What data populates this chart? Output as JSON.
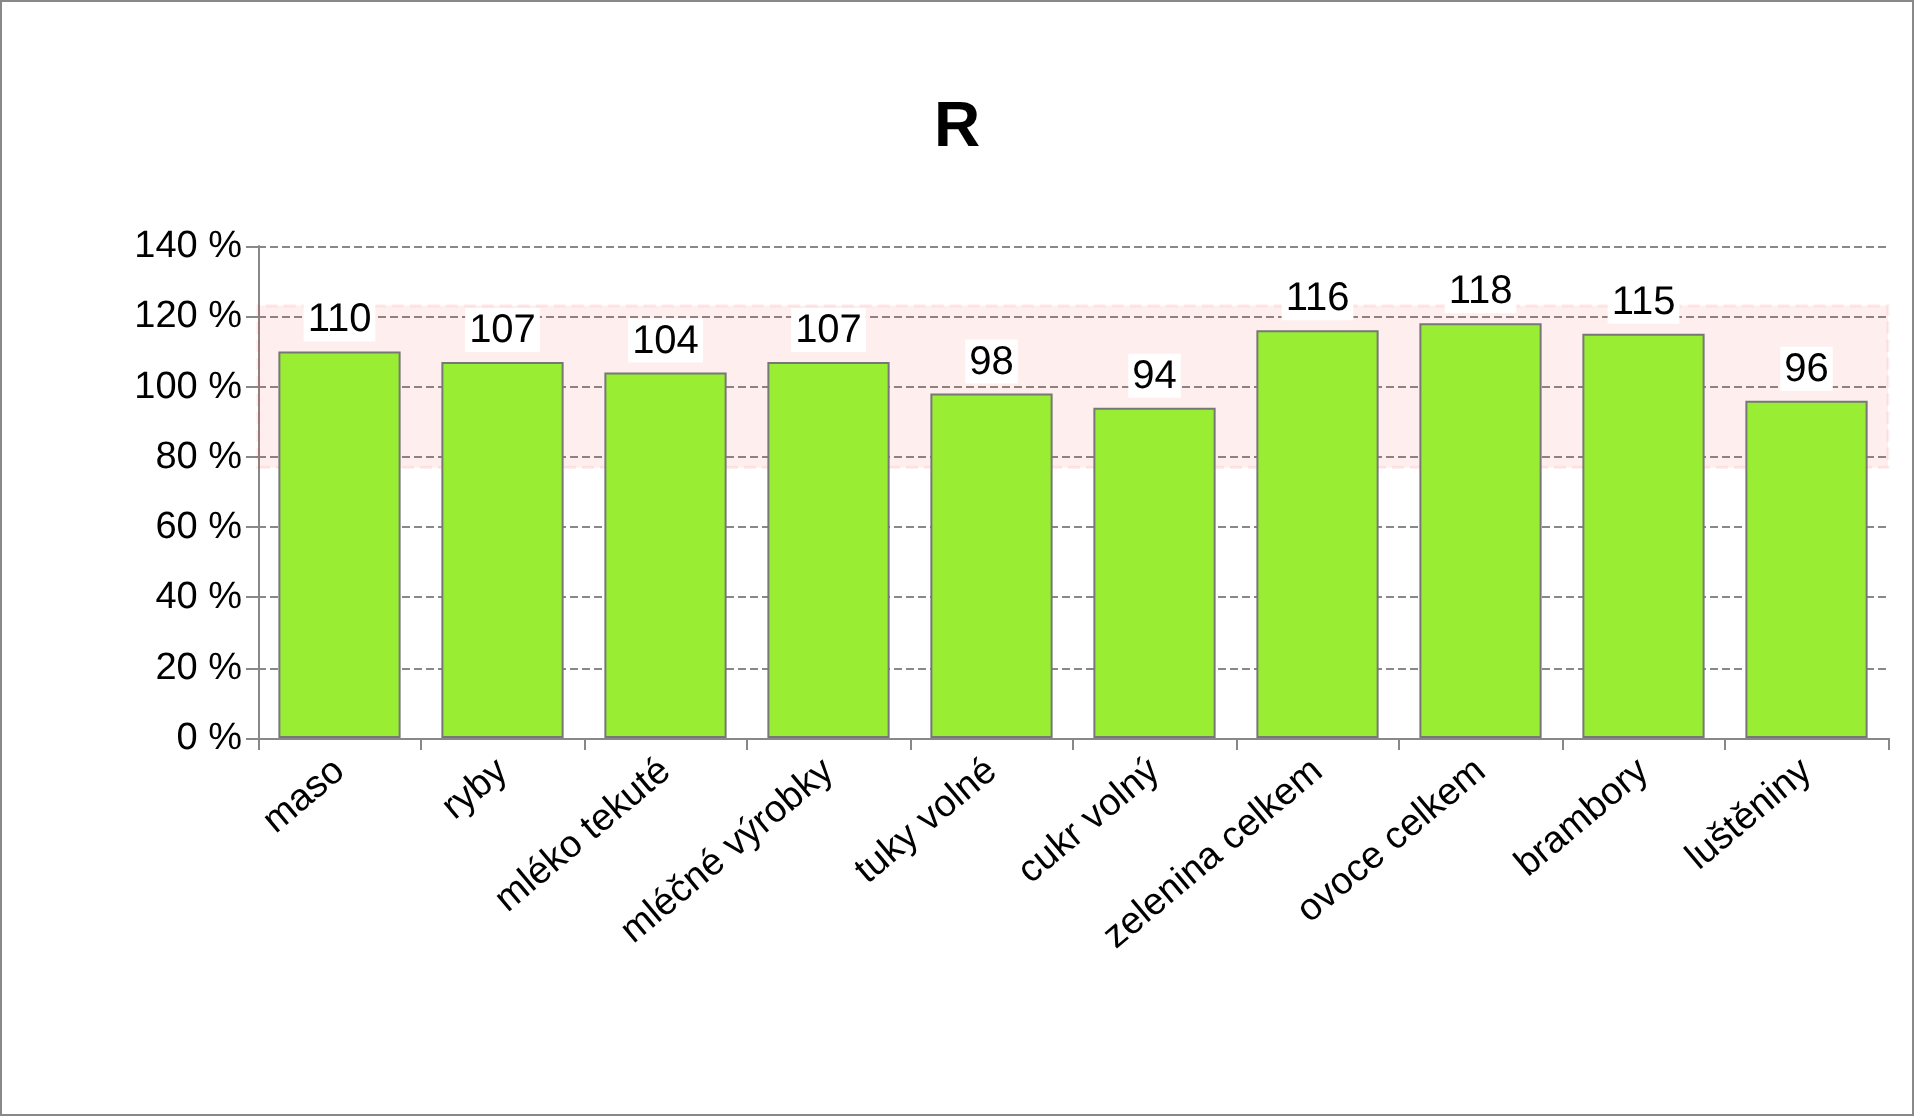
{
  "chart_data": {
    "type": "bar",
    "title": "R",
    "categories": [
      "maso",
      "ryby",
      "mléko tekuté",
      "mléčné výrobky",
      "tuky volné",
      "cukr volný",
      "zelenina celkem",
      "ovoce celkem",
      "brambory",
      "luštěniny"
    ],
    "values": [
      110,
      107,
      104,
      107,
      98,
      94,
      116,
      118,
      115,
      96
    ],
    "color": "#99ee33",
    "ylim": [
      0,
      140
    ],
    "yticks": [
      {
        "value": 0,
        "label": "0 %"
      },
      {
        "value": 20,
        "label": "20 %"
      },
      {
        "value": 40,
        "label": "40 %"
      },
      {
        "value": 60,
        "label": "60 %"
      },
      {
        "value": 80,
        "label": "80 %"
      },
      {
        "value": 100,
        "label": "100 %"
      },
      {
        "value": 120,
        "label": "120 %"
      },
      {
        "value": 140,
        "label": "140 %"
      }
    ],
    "grid": "y",
    "data_labels": true,
    "bands": [
      {
        "axis": "y",
        "from": 77,
        "to": 123,
        "color": "#ee2222"
      }
    ]
  }
}
